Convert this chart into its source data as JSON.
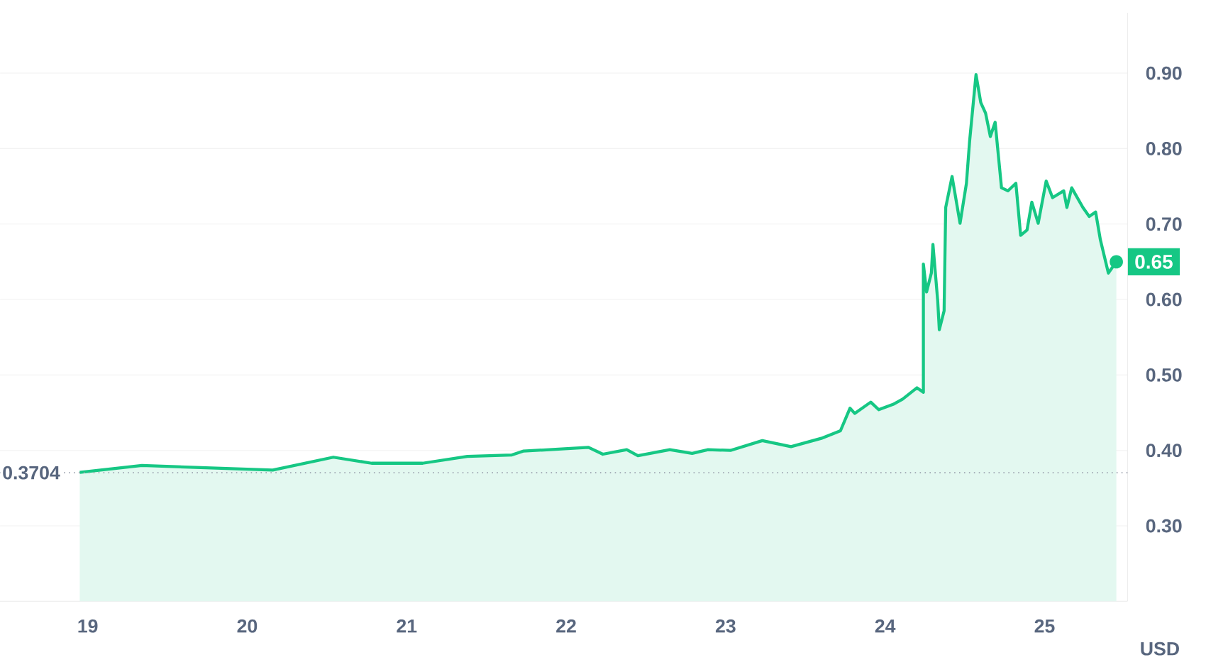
{
  "chart_data": {
    "type": "area",
    "ylabel": "USD",
    "xlim": [
      18.45,
      25.52
    ],
    "ylim": [
      0.2,
      0.98
    ],
    "xticks": [
      19,
      20,
      21,
      22,
      23,
      24,
      25
    ],
    "yticks": [
      {
        "value": 0.3,
        "label": "0.30"
      },
      {
        "value": 0.4,
        "label": "0.40"
      },
      {
        "value": 0.5,
        "label": "0.50"
      },
      {
        "value": 0.6,
        "label": "0.60"
      },
      {
        "value": 0.7,
        "label": "0.70"
      },
      {
        "value": 0.8,
        "label": "0.80"
      },
      {
        "value": 0.9,
        "label": "0.90"
      }
    ],
    "grid": "y",
    "ref_lines": [
      {
        "axis": "y",
        "value": 0.3704,
        "label": "0.3704",
        "color": "#9aa0ad",
        "line_style": "dotted"
      }
    ],
    "annotations": [
      {
        "text": "0.65",
        "x": 25.45,
        "y": 0.65
      }
    ],
    "series": [
      {
        "color": "#16c784",
        "x": [
          18.95,
          19.34,
          20.16,
          20.54,
          20.78,
          21.1,
          21.38,
          21.66,
          21.73,
          22.14,
          22.23,
          22.38,
          22.45,
          22.65,
          22.79,
          22.89,
          23.03,
          23.23,
          23.41,
          23.6,
          23.72,
          23.78,
          23.81,
          23.91,
          23.96,
          24.05,
          24.11,
          24.2,
          24.24,
          24.24,
          24.26,
          24.29,
          24.3,
          24.33,
          24.34,
          24.37,
          24.38,
          24.42,
          24.47,
          24.51,
          24.53,
          24.57,
          24.6,
          24.63,
          24.66,
          24.69,
          24.73,
          24.77,
          24.82,
          24.85,
          24.89,
          24.92,
          24.96,
          25.01,
          25.05,
          25.12,
          25.14,
          25.17,
          25.24,
          25.28,
          25.32,
          25.35,
          25.4,
          25.45
        ],
        "values": [
          0.371,
          0.38,
          0.374,
          0.391,
          0.383,
          0.383,
          0.392,
          0.394,
          0.399,
          0.404,
          0.395,
          0.401,
          0.393,
          0.401,
          0.396,
          0.401,
          0.4,
          0.413,
          0.405,
          0.416,
          0.426,
          0.456,
          0.449,
          0.464,
          0.454,
          0.461,
          0.468,
          0.483,
          0.477,
          0.647,
          0.61,
          0.635,
          0.673,
          0.598,
          0.56,
          0.585,
          0.722,
          0.763,
          0.701,
          0.754,
          0.81,
          0.898,
          0.861,
          0.847,
          0.816,
          0.835,
          0.748,
          0.744,
          0.754,
          0.685,
          0.692,
          0.729,
          0.701,
          0.757,
          0.735,
          0.744,
          0.722,
          0.748,
          0.722,
          0.71,
          0.716,
          0.679,
          0.635,
          0.65
        ]
      }
    ]
  }
}
